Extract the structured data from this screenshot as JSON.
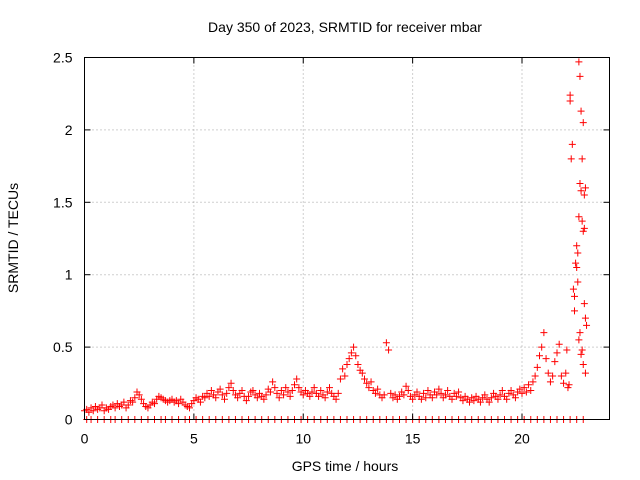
{
  "chart_data": {
    "type": "scatter",
    "title": "Day 350 of 2023, SRMTID for receiver mbar",
    "xlabel": "GPS time / hours",
    "ylabel": "SRMTID / TECUs",
    "xlim": [
      0,
      24
    ],
    "ylim": [
      0,
      2.5
    ],
    "grid": true,
    "marker": "plus",
    "color": "#ff0000",
    "x_ticks": [
      0,
      5,
      10,
      15,
      20
    ],
    "x_tick_labels": [
      "0",
      "5",
      "10",
      "15",
      "20"
    ],
    "y_ticks": [
      0,
      0.5,
      1,
      1.5,
      2,
      2.5
    ],
    "y_tick_labels": [
      "0",
      "0.5",
      "1",
      "1.5",
      "2",
      "2.5"
    ],
    "series": [
      {
        "name": "SRMTID",
        "points": [
          [
            0.0,
            0.06
          ],
          [
            0.1,
            0.07
          ],
          [
            0.2,
            0.05
          ],
          [
            0.3,
            0.08
          ],
          [
            0.4,
            0.06
          ],
          [
            0.5,
            0.09
          ],
          [
            0.6,
            0.07
          ],
          [
            0.7,
            0.08
          ],
          [
            0.8,
            0.1
          ],
          [
            0.9,
            0.06
          ],
          [
            1.0,
            0.08
          ],
          [
            1.1,
            0.07
          ],
          [
            1.2,
            0.09
          ],
          [
            1.3,
            0.1
          ],
          [
            1.4,
            0.08
          ],
          [
            1.5,
            0.11
          ],
          [
            1.6,
            0.09
          ],
          [
            1.7,
            0.1
          ],
          [
            1.8,
            0.12
          ],
          [
            1.9,
            0.08
          ],
          [
            2.0,
            0.1
          ],
          [
            2.1,
            0.13
          ],
          [
            2.2,
            0.12
          ],
          [
            2.3,
            0.15
          ],
          [
            2.4,
            0.19
          ],
          [
            2.5,
            0.17
          ],
          [
            2.6,
            0.14
          ],
          [
            2.7,
            0.11
          ],
          [
            2.8,
            0.09
          ],
          [
            2.9,
            0.08
          ],
          [
            3.0,
            0.1
          ],
          [
            3.1,
            0.12
          ],
          [
            3.2,
            0.11
          ],
          [
            3.3,
            0.14
          ],
          [
            3.4,
            0.16
          ],
          [
            3.5,
            0.15
          ],
          [
            3.6,
            0.14
          ],
          [
            3.7,
            0.13
          ],
          [
            3.8,
            0.12
          ],
          [
            3.9,
            0.13
          ],
          [
            4.0,
            0.14
          ],
          [
            4.1,
            0.12
          ],
          [
            4.2,
            0.13
          ],
          [
            4.3,
            0.11
          ],
          [
            4.4,
            0.14
          ],
          [
            4.5,
            0.12
          ],
          [
            4.6,
            0.1
          ],
          [
            4.7,
            0.09
          ],
          [
            4.8,
            0.08
          ],
          [
            4.9,
            0.11
          ],
          [
            5.0,
            0.13
          ],
          [
            5.1,
            0.15
          ],
          [
            5.2,
            0.14
          ],
          [
            5.3,
            0.12
          ],
          [
            5.4,
            0.16
          ],
          [
            5.5,
            0.15
          ],
          [
            5.6,
            0.18
          ],
          [
            5.7,
            0.16
          ],
          [
            5.8,
            0.2
          ],
          [
            5.9,
            0.17
          ],
          [
            6.0,
            0.15
          ],
          [
            6.1,
            0.19
          ],
          [
            6.2,
            0.21
          ],
          [
            6.3,
            0.17
          ],
          [
            6.4,
            0.14
          ],
          [
            6.5,
            0.18
          ],
          [
            6.6,
            0.22
          ],
          [
            6.7,
            0.25
          ],
          [
            6.8,
            0.2
          ],
          [
            6.9,
            0.17
          ],
          [
            7.0,
            0.15
          ],
          [
            7.1,
            0.18
          ],
          [
            7.2,
            0.2
          ],
          [
            7.3,
            0.16
          ],
          [
            7.4,
            0.13
          ],
          [
            7.5,
            0.16
          ],
          [
            7.6,
            0.19
          ],
          [
            7.7,
            0.2
          ],
          [
            7.8,
            0.17
          ],
          [
            7.9,
            0.15
          ],
          [
            8.0,
            0.18
          ],
          [
            8.1,
            0.16
          ],
          [
            8.2,
            0.14
          ],
          [
            8.3,
            0.17
          ],
          [
            8.4,
            0.21
          ],
          [
            8.5,
            0.19
          ],
          [
            8.6,
            0.26
          ],
          [
            8.7,
            0.22
          ],
          [
            8.8,
            0.18
          ],
          [
            8.9,
            0.15
          ],
          [
            9.0,
            0.2
          ],
          [
            9.1,
            0.17
          ],
          [
            9.2,
            0.22
          ],
          [
            9.3,
            0.19
          ],
          [
            9.4,
            0.16
          ],
          [
            9.5,
            0.2
          ],
          [
            9.6,
            0.24
          ],
          [
            9.7,
            0.28
          ],
          [
            9.8,
            0.22
          ],
          [
            9.9,
            0.19
          ],
          [
            10.0,
            0.17
          ],
          [
            10.1,
            0.2
          ],
          [
            10.2,
            0.18
          ],
          [
            10.3,
            0.16
          ],
          [
            10.4,
            0.19
          ],
          [
            10.5,
            0.22
          ],
          [
            10.6,
            0.18
          ],
          [
            10.7,
            0.16
          ],
          [
            10.8,
            0.2
          ],
          [
            10.9,
            0.17
          ],
          [
            11.0,
            0.15
          ],
          [
            11.1,
            0.19
          ],
          [
            11.2,
            0.22
          ],
          [
            11.3,
            0.18
          ],
          [
            11.4,
            0.16
          ],
          [
            11.5,
            0.14
          ],
          [
            11.6,
            0.18
          ],
          [
            11.7,
            0.28
          ],
          [
            11.8,
            0.35
          ],
          [
            11.9,
            0.3
          ],
          [
            12.0,
            0.38
          ],
          [
            12.1,
            0.42
          ],
          [
            12.2,
            0.46
          ],
          [
            12.3,
            0.5
          ],
          [
            12.4,
            0.44
          ],
          [
            12.5,
            0.38
          ],
          [
            12.6,
            0.34
          ],
          [
            12.7,
            0.32
          ],
          [
            12.8,
            0.28
          ],
          [
            12.9,
            0.25
          ],
          [
            13.0,
            0.22
          ],
          [
            13.1,
            0.26
          ],
          [
            13.2,
            0.2
          ],
          [
            13.3,
            0.18
          ],
          [
            13.4,
            0.21
          ],
          [
            13.5,
            0.17
          ],
          [
            13.6,
            0.15
          ],
          [
            13.7,
            0.17
          ],
          [
            13.8,
            0.53
          ],
          [
            13.9,
            0.48
          ],
          [
            14.0,
            0.18
          ],
          [
            14.1,
            0.15
          ],
          [
            14.2,
            0.17
          ],
          [
            14.3,
            0.14
          ],
          [
            14.4,
            0.16
          ],
          [
            14.5,
            0.19
          ],
          [
            14.6,
            0.17
          ],
          [
            14.7,
            0.23
          ],
          [
            14.8,
            0.2
          ],
          [
            14.9,
            0.16
          ],
          [
            15.0,
            0.14
          ],
          [
            15.1,
            0.17
          ],
          [
            15.2,
            0.19
          ],
          [
            15.3,
            0.16
          ],
          [
            15.4,
            0.14
          ],
          [
            15.5,
            0.18
          ],
          [
            15.6,
            0.15
          ],
          [
            15.7,
            0.2
          ],
          [
            15.8,
            0.17
          ],
          [
            15.9,
            0.15
          ],
          [
            16.0,
            0.19
          ],
          [
            16.1,
            0.17
          ],
          [
            16.2,
            0.21
          ],
          [
            16.3,
            0.18
          ],
          [
            16.4,
            0.15
          ],
          [
            16.5,
            0.17
          ],
          [
            16.6,
            0.2
          ],
          [
            16.7,
            0.16
          ],
          [
            16.8,
            0.14
          ],
          [
            16.9,
            0.18
          ],
          [
            17.0,
            0.16
          ],
          [
            17.1,
            0.19
          ],
          [
            17.2,
            0.15
          ],
          [
            17.3,
            0.13
          ],
          [
            17.4,
            0.16
          ],
          [
            17.5,
            0.14
          ],
          [
            17.6,
            0.12
          ],
          [
            17.7,
            0.15
          ],
          [
            17.8,
            0.13
          ],
          [
            17.9,
            0.16
          ],
          [
            18.0,
            0.14
          ],
          [
            18.1,
            0.12
          ],
          [
            18.2,
            0.15
          ],
          [
            18.3,
            0.17
          ],
          [
            18.4,
            0.14
          ],
          [
            18.5,
            0.12
          ],
          [
            18.6,
            0.15
          ],
          [
            18.7,
            0.18
          ],
          [
            18.8,
            0.16
          ],
          [
            18.9,
            0.14
          ],
          [
            19.0,
            0.17
          ],
          [
            19.1,
            0.2
          ],
          [
            19.2,
            0.16
          ],
          [
            19.3,
            0.14
          ],
          [
            19.4,
            0.18
          ],
          [
            19.5,
            0.2
          ],
          [
            19.6,
            0.17
          ],
          [
            19.7,
            0.15
          ],
          [
            19.8,
            0.19
          ],
          [
            19.9,
            0.21
          ],
          [
            20.0,
            0.18
          ],
          [
            20.1,
            0.22
          ],
          [
            20.2,
            0.19
          ],
          [
            20.3,
            0.24
          ],
          [
            20.4,
            0.2
          ],
          [
            20.5,
            0.26
          ],
          [
            20.6,
            0.3
          ],
          [
            20.7,
            0.36
          ],
          [
            20.8,
            0.44
          ],
          [
            20.9,
            0.5
          ],
          [
            21.0,
            0.6
          ],
          [
            21.1,
            0.42
          ],
          [
            21.2,
            0.32
          ],
          [
            21.3,
            0.26
          ],
          [
            21.4,
            0.3
          ],
          [
            21.5,
            0.4
          ],
          [
            21.6,
            0.46
          ],
          [
            21.7,
            0.52
          ],
          [
            21.8,
            0.3
          ],
          [
            21.9,
            0.25
          ],
          [
            22.0,
            0.32
          ],
          [
            22.05,
            0.48
          ],
          [
            22.1,
            0.22
          ],
          [
            22.15,
            0.24
          ],
          [
            22.2,
            2.2
          ],
          [
            22.2,
            2.24
          ],
          [
            22.25,
            1.8
          ],
          [
            22.3,
            1.9
          ],
          [
            22.35,
            0.9
          ],
          [
            22.4,
            0.75
          ],
          [
            22.45,
            1.08
          ],
          [
            22.5,
            1.05
          ],
          [
            22.55,
            0.95
          ],
          [
            22.6,
            2.47
          ],
          [
            22.65,
            2.37
          ],
          [
            22.7,
            2.13
          ],
          [
            22.75,
            1.8
          ],
          [
            22.8,
            2.05
          ],
          [
            22.85,
            1.55
          ],
          [
            22.9,
            1.6
          ],
          [
            22.6,
            1.4
          ],
          [
            22.65,
            1.63
          ],
          [
            22.7,
            1.58
          ],
          [
            22.75,
            1.37
          ],
          [
            22.8,
            1.3
          ],
          [
            22.85,
            0.8
          ],
          [
            22.9,
            0.7
          ],
          [
            22.95,
            0.65
          ],
          [
            22.6,
            0.55
          ],
          [
            22.7,
            0.45
          ],
          [
            22.8,
            0.38
          ],
          [
            22.9,
            0.32
          ],
          [
            22.5,
            1.2
          ],
          [
            22.4,
            0.85
          ],
          [
            22.55,
            1.15
          ],
          [
            22.65,
            0.6
          ],
          [
            22.75,
            0.48
          ],
          [
            22.85,
            1.32
          ]
        ],
        "zero_values_x": [
          0.1,
          0.3,
          0.6,
          0.9,
          1.2,
          1.4,
          1.7,
          2.0,
          2.3,
          2.6,
          2.9,
          3.2,
          3.5,
          3.7,
          4.0,
          4.3,
          4.6,
          4.8,
          5.1,
          5.4,
          5.7,
          6.0,
          6.3,
          6.6,
          6.9,
          7.2,
          7.5,
          7.8,
          8.1,
          8.4,
          8.7,
          9.0,
          9.3,
          9.6,
          9.9,
          10.2,
          10.5,
          10.8,
          11.1,
          11.4,
          11.7,
          12.0,
          12.3,
          12.6,
          12.9,
          13.2,
          13.5,
          13.8,
          14.1,
          14.4,
          14.7,
          15.0,
          15.3,
          15.6,
          15.9,
          16.2,
          16.5,
          16.8,
          17.1,
          17.4,
          17.7,
          18.0,
          18.3,
          18.6,
          18.9,
          19.2,
          19.5,
          19.8,
          20.1,
          20.4,
          20.7,
          21.0,
          21.3,
          21.6,
          21.9,
          22.2,
          22.5,
          22.8
        ]
      }
    ]
  }
}
